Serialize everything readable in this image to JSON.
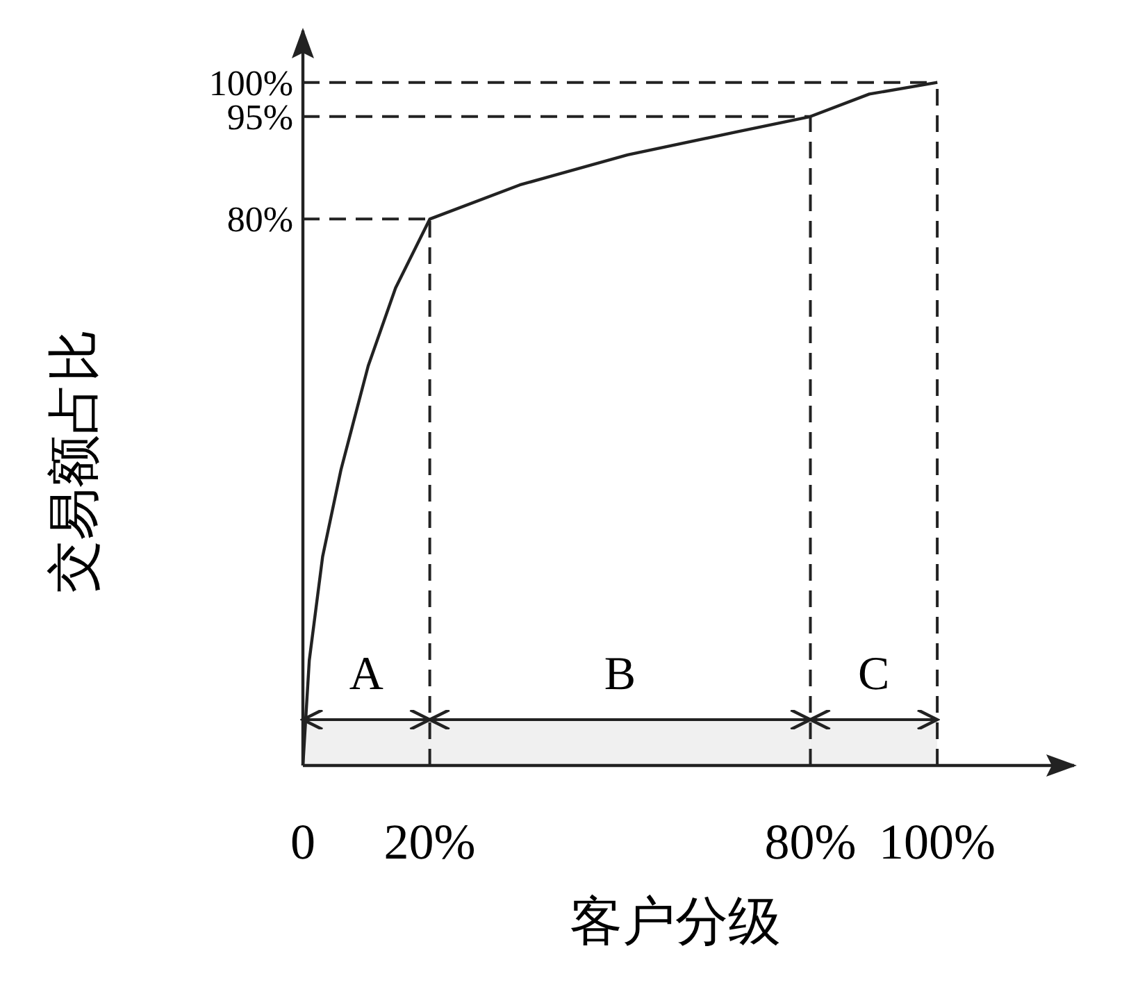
{
  "chart_data": {
    "type": "line",
    "xlabel": "客户分级",
    "ylabel": "交易额占比",
    "x": [
      0,
      1.0,
      3.1,
      6,
      10.3,
      14.6,
      20,
      34.2,
      51.2,
      68.1,
      80,
      89.3,
      100
    ],
    "series": [
      {
        "color": "#222222",
        "values": [
          0,
          15.4,
          30.6,
          43.3,
          58.5,
          69.9,
          80,
          85.0,
          89.4,
          92.7,
          95,
          98.3,
          100
        ]
      }
    ],
    "xlim": [
      0,
      122
    ],
    "ylim": [
      0,
      108
    ],
    "xticks": [
      0,
      {
        "value": 20,
        "label": "20%"
      },
      {
        "value": 80,
        "label": "80%"
      },
      {
        "value": 100,
        "label": "100%"
      }
    ],
    "yticks": [
      {
        "value": 80,
        "label": "80%"
      },
      {
        "value": 95,
        "label": "95%"
      },
      {
        "value": 100,
        "label": "100%"
      }
    ],
    "ref_lines": [
      {
        "axis": "y",
        "value": 80,
        "line_style": "dashed"
      },
      {
        "axis": "y",
        "value": 95,
        "line_style": "dashed"
      },
      {
        "axis": "y",
        "value": 100,
        "line_style": "dashed"
      },
      {
        "axis": "x",
        "value": 20,
        "line_style": "dashed"
      },
      {
        "axis": "x",
        "value": 80,
        "line_style": "dashed"
      },
      {
        "axis": "x",
        "value": 100,
        "line_style": "dashed"
      }
    ],
    "bands": [
      {
        "axis": "x",
        "from": 0,
        "to": 20,
        "label": "A",
        "color": "#f0f0f0"
      },
      {
        "axis": "x",
        "from": 20,
        "to": 80,
        "label": "B",
        "color": "#f0f0f0"
      },
      {
        "axis": "x",
        "from": 80,
        "to": 100,
        "label": "C",
        "color": "#f0f0f0"
      }
    ],
    "grid": false,
    "marker": "none",
    "line_style": "solid"
  }
}
